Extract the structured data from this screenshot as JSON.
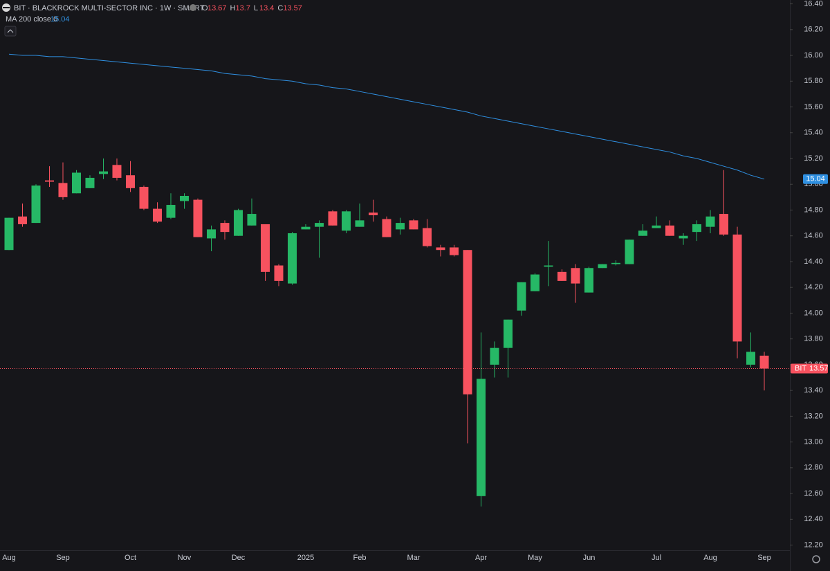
{
  "chart_data": {
    "type": "candlestick",
    "title": "BIT · BLACKROCK MULTI-SECTOR INC · 1W · SMART",
    "ohlc_labels": [
      "O",
      "H",
      "L",
      "C"
    ],
    "categories": [
      "Aug",
      null,
      null,
      null,
      "Sep",
      null,
      null,
      null,
      null,
      "Oct",
      null,
      null,
      null,
      "Nov",
      null,
      null,
      null,
      "Dec",
      null,
      null,
      null,
      null,
      "2025",
      null,
      null,
      null,
      "Feb",
      null,
      null,
      null,
      "Mar",
      null,
      null,
      null,
      null,
      "Apr",
      null,
      null,
      null,
      "May",
      null,
      null,
      null,
      "Jun",
      null,
      null,
      null,
      null,
      "Jul",
      null,
      null,
      null,
      "Aug",
      null,
      null,
      null,
      "Sep"
    ],
    "open": [
      14.49,
      14.75,
      14.7,
      15.03,
      15.01,
      14.93,
      14.97,
      15.08,
      15.15,
      15.07,
      14.98,
      14.81,
      14.74,
      14.87,
      14.88,
      14.58,
      14.7,
      14.6,
      14.68,
      14.69,
      14.37,
      14.23,
      14.65,
      14.67,
      14.79,
      14.64,
      14.67,
      14.78,
      14.73,
      14.65,
      14.72,
      14.66,
      14.51,
      14.51,
      14.49,
      12.58,
      13.6,
      13.73,
      14.02,
      14.17,
      14.36,
      14.32,
      14.35,
      14.16,
      14.35,
      14.38,
      14.38,
      14.6,
      14.66,
      14.68,
      14.58,
      14.63,
      14.67,
      14.77,
      14.61,
      13.6,
      13.67
    ],
    "high": [
      14.74,
      14.85,
      15.0,
      15.14,
      15.17,
      15.11,
      15.07,
      15.2,
      15.2,
      15.18,
      14.99,
      14.86,
      14.93,
      14.93,
      14.89,
      14.68,
      14.72,
      14.81,
      14.89,
      14.69,
      14.38,
      14.63,
      14.69,
      14.72,
      14.8,
      14.8,
      14.85,
      14.88,
      14.75,
      14.74,
      14.73,
      14.73,
      14.53,
      14.53,
      14.49,
      13.85,
      13.78,
      13.95,
      14.24,
      14.31,
      14.56,
      14.34,
      14.38,
      14.36,
      14.38,
      14.41,
      14.57,
      14.69,
      14.75,
      14.72,
      14.62,
      14.72,
      14.8,
      15.11,
      14.67,
      13.85,
      13.7
    ],
    "low": [
      14.49,
      14.67,
      14.7,
      14.98,
      14.88,
      14.93,
      14.97,
      15.04,
      15.03,
      14.94,
      14.8,
      14.7,
      14.73,
      14.81,
      14.59,
      14.48,
      14.57,
      14.6,
      14.68,
      14.25,
      14.21,
      14.22,
      14.65,
      14.43,
      14.68,
      14.62,
      14.67,
      14.71,
      14.59,
      14.61,
      14.65,
      14.51,
      14.44,
      14.44,
      12.99,
      12.5,
      13.5,
      13.5,
      13.98,
      14.17,
      14.21,
      14.25,
      14.08,
      14.16,
      14.35,
      14.37,
      14.38,
      14.6,
      14.66,
      14.6,
      14.53,
      14.56,
      14.62,
      14.6,
      13.65,
      13.58,
      13.4
    ],
    "close": [
      14.74,
      14.69,
      14.99,
      15.02,
      14.9,
      15.09,
      15.05,
      15.1,
      15.05,
      14.97,
      14.81,
      14.71,
      14.84,
      14.91,
      14.59,
      14.65,
      14.63,
      14.8,
      14.77,
      14.32,
      14.25,
      14.62,
      14.67,
      14.7,
      14.68,
      14.79,
      14.72,
      14.76,
      14.59,
      14.7,
      14.65,
      14.52,
      14.49,
      14.45,
      13.37,
      13.49,
      13.73,
      13.95,
      14.24,
      14.3,
      14.37,
      14.25,
      14.23,
      14.35,
      14.38,
      14.39,
      14.57,
      14.64,
      14.68,
      14.6,
      14.6,
      14.69,
      14.75,
      14.61,
      13.78,
      13.7,
      13.57
    ],
    "up_color": "#26b866",
    "down_color": "#f7525f",
    "ticker": "BIT",
    "ma": {
      "name": "MA 200 close 0",
      "color": "#2f8fe0",
      "values": [
        16.01,
        16.0,
        16.0,
        15.99,
        15.99,
        15.98,
        15.97,
        15.96,
        15.95,
        15.94,
        15.93,
        15.92,
        15.91,
        15.9,
        15.89,
        15.88,
        15.86,
        15.85,
        15.84,
        15.82,
        15.81,
        15.8,
        15.78,
        15.77,
        15.75,
        15.74,
        15.72,
        15.7,
        15.68,
        15.66,
        15.64,
        15.62,
        15.6,
        15.58,
        15.56,
        15.53,
        15.51,
        15.49,
        15.47,
        15.45,
        15.43,
        15.41,
        15.39,
        15.37,
        15.35,
        15.33,
        15.31,
        15.29,
        15.27,
        15.25,
        15.22,
        15.2,
        15.17,
        15.14,
        15.11,
        15.07,
        15.04
      ]
    },
    "ylim": [
      12.16,
      16.43
    ],
    "yticks": [
      {
        "value": 12.2,
        "label": "12.20"
      },
      {
        "value": 12.4,
        "label": "12.40"
      },
      {
        "value": 12.6,
        "label": "12.60"
      },
      {
        "value": 12.8,
        "label": "12.80"
      },
      {
        "value": 13,
        "label": "13.00"
      },
      {
        "value": 13.2,
        "label": "13.20"
      },
      {
        "value": 13.4,
        "label": "13.40"
      },
      {
        "value": 13.6,
        "label": "13.60"
      },
      {
        "value": 13.8,
        "label": "13.80"
      },
      {
        "value": 14,
        "label": "14.00"
      },
      {
        "value": 14.2,
        "label": "14.20"
      },
      {
        "value": 14.4,
        "label": "14.40"
      },
      {
        "value": 14.6,
        "label": "14.60"
      },
      {
        "value": 14.8,
        "label": "14.80"
      },
      {
        "value": 15,
        "label": "15.00"
      },
      {
        "value": 15.2,
        "label": "15.20"
      },
      {
        "value": 15.4,
        "label": "15.40"
      },
      {
        "value": 15.6,
        "label": "15.60"
      },
      {
        "value": 15.8,
        "label": "15.80"
      },
      {
        "value": 16,
        "label": "16.00"
      },
      {
        "value": 16.2,
        "label": "16.20"
      },
      {
        "value": 16.4,
        "label": "16.40"
      }
    ]
  }
}
